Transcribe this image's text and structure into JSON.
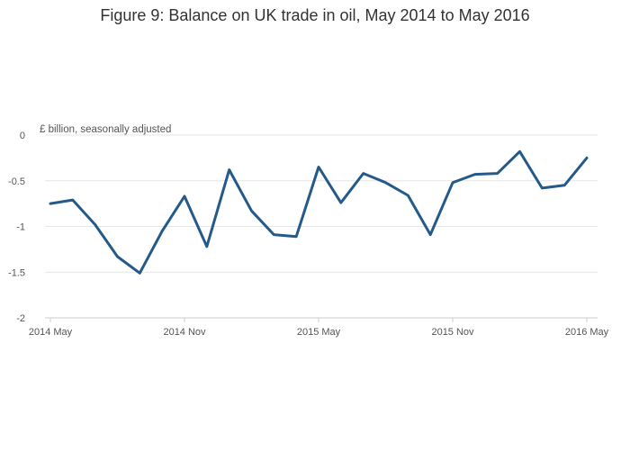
{
  "chart_data": {
    "type": "line",
    "title": "Figure 9: Balance on UK trade in oil, May 2014 to May 2016",
    "ylabel": "£ billion, seasonally adjusted",
    "xlabel": "",
    "ylim": [
      -2,
      0
    ],
    "y_ticks": [
      0,
      -0.5,
      -1,
      -1.5,
      -2
    ],
    "y_tick_labels": [
      "0",
      "-0.5",
      "-1",
      "-1.5",
      "-2"
    ],
    "x_ticks": [
      {
        "index": 0,
        "label": "2014 May"
      },
      {
        "index": 6,
        "label": "2014 Nov"
      },
      {
        "index": 12,
        "label": "2015 May"
      },
      {
        "index": 18,
        "label": "2015 Nov"
      },
      {
        "index": 24,
        "label": "2016 May"
      }
    ],
    "grid": true,
    "x": [
      "2014 May",
      "2014 Jun",
      "2014 Jul",
      "2014 Aug",
      "2014 Sep",
      "2014 Oct",
      "2014 Nov",
      "2014 Dec",
      "2015 Jan",
      "2015 Feb",
      "2015 Mar",
      "2015 Apr",
      "2015 May",
      "2015 Jun",
      "2015 Jul",
      "2015 Aug",
      "2015 Sep",
      "2015 Oct",
      "2015 Nov",
      "2015 Dec",
      "2016 Jan",
      "2016 Feb",
      "2016 Mar",
      "2016 Apr",
      "2016 May"
    ],
    "series": [
      {
        "color": "#245a8a",
        "values": [
          -0.75,
          -0.71,
          -0.98,
          -1.33,
          -1.51,
          -1.05,
          -0.67,
          -1.22,
          -0.38,
          -0.83,
          -1.09,
          -1.11,
          -0.35,
          -0.74,
          -0.42,
          -0.52,
          -0.66,
          -1.09,
          -0.52,
          -0.43,
          -0.42,
          -0.18,
          -0.58,
          -0.55,
          -0.25
        ]
      }
    ]
  }
}
